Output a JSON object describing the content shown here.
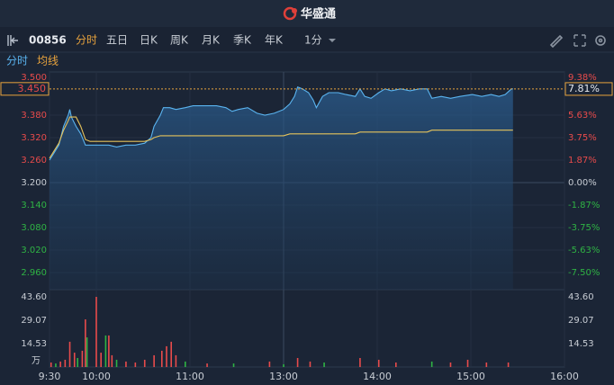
{
  "header": {
    "title": "华盛通"
  },
  "toolbar": {
    "code": "00856",
    "tabs": [
      "分时",
      "五日",
      "日K",
      "周K",
      "月K",
      "季K",
      "年K"
    ],
    "interval": "1分"
  },
  "chart_data": [
    {
      "type": "line",
      "x": [
        0,
        3,
        6,
        9,
        12,
        13,
        14,
        17,
        20,
        23,
        26,
        32,
        38,
        43,
        49,
        55,
        61,
        65,
        67,
        71,
        73,
        77,
        81,
        87,
        92,
        98,
        107,
        113,
        117,
        121,
        127,
        133,
        138,
        144,
        150,
        154,
        157,
        159,
        162,
        166,
        169,
        171,
        175,
        179,
        185,
        190,
        196,
        199,
        202,
        206,
        211,
        215,
        219,
        225,
        231,
        237,
        242,
        245,
        251,
        257,
        263,
        271,
        277,
        283,
        288,
        292,
        296,
        297
      ],
      "series": [
        {
          "name": "分时",
          "color": "#5ab4f0",
          "values": [
            3.26,
            3.28,
            3.3,
            3.35,
            3.38,
            3.395,
            3.375,
            3.35,
            3.33,
            3.3,
            3.3,
            3.3,
            3.3,
            3.295,
            3.3,
            3.3,
            3.305,
            3.32,
            3.35,
            3.38,
            3.4,
            3.4,
            3.395,
            3.4,
            3.405,
            3.405,
            3.405,
            3.4,
            3.39,
            3.395,
            3.4,
            3.385,
            3.38,
            3.385,
            3.395,
            3.41,
            3.43,
            3.455,
            3.45,
            3.44,
            3.42,
            3.4,
            3.43,
            3.44,
            3.44,
            3.435,
            3.43,
            3.45,
            3.43,
            3.425,
            3.44,
            3.45,
            3.445,
            3.45,
            3.445,
            3.45,
            3.45,
            3.425,
            3.43,
            3.425,
            3.43,
            3.435,
            3.43,
            3.435,
            3.43,
            3.435,
            3.45,
            3.45
          ]
        },
        {
          "name": "均线",
          "color": "#e6c35c",
          "values": [
            3.265,
            3.285,
            3.305,
            3.34,
            3.365,
            3.375,
            3.375,
            3.375,
            3.35,
            3.315,
            3.31,
            3.31,
            3.31,
            3.31,
            3.31,
            3.31,
            3.31,
            3.315,
            3.32,
            3.325,
            3.325,
            3.325,
            3.325,
            3.325,
            3.325,
            3.325,
            3.325,
            3.325,
            3.325,
            3.325,
            3.325,
            3.325,
            3.325,
            3.325,
            3.325,
            3.33,
            3.33,
            3.33,
            3.33,
            3.33,
            3.33,
            3.33,
            3.33,
            3.33,
            3.33,
            3.33,
            3.33,
            3.335,
            3.335,
            3.335,
            3.335,
            3.335,
            3.335,
            3.335,
            3.335,
            3.335,
            3.335,
            3.34,
            3.34,
            3.34,
            3.34,
            3.34,
            3.34,
            3.34,
            3.34,
            3.34,
            3.34,
            3.34
          ]
        }
      ],
      "xlim": [
        0,
        330
      ],
      "ylim": [
        2.9,
        3.5
      ],
      "yticks": [
        {
          "value": 3.5,
          "label": "3.500"
        },
        {
          "value": 3.38,
          "label": "3.380"
        },
        {
          "value": 3.32,
          "label": "3.320"
        },
        {
          "value": 3.26,
          "label": "3.260"
        },
        {
          "value": 3.2,
          "label": "3.200"
        },
        {
          "value": 3.14,
          "label": "3.140"
        },
        {
          "value": 3.08,
          "label": "3.080"
        },
        {
          "value": 3.02,
          "label": "3.020"
        },
        {
          "value": 2.96,
          "label": "2.960"
        }
      ],
      "y2lim": [
        -9.38,
        9.38
      ],
      "y2ticks": [
        {
          "value": 9.38,
          "label": "9.38%"
        },
        {
          "value": 5.63,
          "label": "5.63%"
        },
        {
          "value": 3.75,
          "label": "3.75%"
        },
        {
          "value": 1.87,
          "label": "1.87%"
        },
        {
          "value": 0,
          "label": "0.00%"
        },
        {
          "value": -1.87,
          "label": "-1.87%"
        },
        {
          "value": -3.75,
          "label": "-3.75%"
        },
        {
          "value": -5.63,
          "label": "-5.63%"
        },
        {
          "value": -7.5,
          "label": "-7.50%"
        }
      ],
      "last_value": {
        "value": 3.45,
        "label": "3.450"
      },
      "last_change": {
        "value": 7.81,
        "label": "7.81%"
      },
      "grid": true
    },
    {
      "type": "bar",
      "x": [
        1,
        4,
        7,
        10,
        13,
        16,
        18,
        21,
        23,
        24,
        30,
        33,
        36,
        38,
        40,
        43,
        49,
        55,
        61,
        67,
        72,
        75,
        78,
        81,
        87,
        101,
        118,
        141,
        150,
        159,
        167,
        176,
        199,
        211,
        222,
        245,
        257,
        268,
        280,
        294
      ],
      "values": [
        2.8,
        2.2,
        3.4,
        4.5,
        15.7,
        8.9,
        5.6,
        10.1,
        29.6,
        18.4,
        43.6,
        8.9,
        19.6,
        19.6,
        7.3,
        4.5,
        3.4,
        2.8,
        4.5,
        7.3,
        10.1,
        12.9,
        15.7,
        7.3,
        3.4,
        2.2,
        2.2,
        3.4,
        1.7,
        5.6,
        3.4,
        2.8,
        5.6,
        4.5,
        2.8,
        3.4,
        2.8,
        4.5,
        2.8,
        2.8
      ],
      "colors": [
        "#e84b4b",
        "#2fb344",
        "#e84b4b",
        "#e84b4b",
        "#e84b4b",
        "#e84b4b",
        "#2fb344",
        "#e84b4b",
        "#e84b4b",
        "#2fb344",
        "#e84b4b",
        "#e84b4b",
        "#2fb344",
        "#e84b4b",
        "#e84b4b",
        "#2fb344",
        "#e84b4b",
        "#e84b4b",
        "#e84b4b",
        "#e84b4b",
        "#e84b4b",
        "#e84b4b",
        "#e84b4b",
        "#e84b4b",
        "#2fb344",
        "#e84b4b",
        "#2fb344",
        "#e84b4b",
        "#2fb344",
        "#e84b4b",
        "#e84b4b",
        "#2fb344",
        "#e84b4b",
        "#e84b4b",
        "#e84b4b",
        "#2fb344",
        "#e84b4b",
        "#e84b4b",
        "#e84b4b",
        "#e84b4b"
      ],
      "xlim": [
        0,
        330
      ],
      "xticks": [
        {
          "value": 0,
          "label": "9:30"
        },
        {
          "value": 30,
          "label": "10:00"
        },
        {
          "value": 90,
          "label": "11:00"
        },
        {
          "value": 150,
          "label": "13:00"
        },
        {
          "value": 210,
          "label": "14:00"
        },
        {
          "value": 270,
          "label": "15:00"
        },
        {
          "value": 330,
          "label": "16:00"
        }
      ],
      "ylim": [
        0,
        43.6
      ],
      "yticks": [
        {
          "value": 43.6,
          "label": "43.60"
        },
        29.07,
        14.53
      ],
      "unit": "万"
    }
  ]
}
